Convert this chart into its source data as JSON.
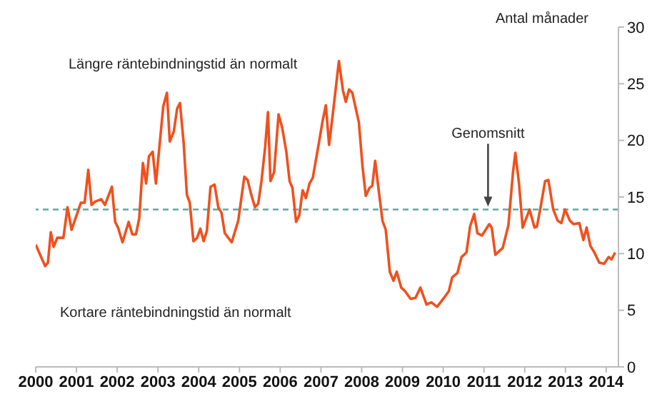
{
  "chart_data": {
    "type": "line",
    "ylabel": "Antal månader",
    "annotations": [
      "Längre räntebindningstid än normalt",
      "Kortare räntebindningstid än normalt",
      {
        "text": "Genomsnitt",
        "x": 2011.1,
        "y": 13.9
      }
    ],
    "series": [
      {
        "color": "#f0501e",
        "x": [
          2000.0,
          2000.23,
          2000.3,
          2000.37,
          2000.44,
          2000.53,
          2000.68,
          2000.78,
          2000.88,
          2001.11,
          2001.2,
          2001.29,
          2001.37,
          2001.46,
          2001.61,
          2001.7,
          2001.87,
          2001.95,
          2002.02,
          2002.13,
          2002.28,
          2002.37,
          2002.46,
          2002.54,
          2002.63,
          2002.71,
          2002.78,
          2002.87,
          2002.95,
          2003.13,
          2003.22,
          2003.29,
          2003.39,
          2003.47,
          2003.54,
          2003.63,
          2003.71,
          2003.78,
          2003.87,
          2003.96,
          2004.04,
          2004.12,
          2004.2,
          2004.29,
          2004.39,
          2004.48,
          2004.56,
          2004.64,
          2004.81,
          2004.97,
          2005.12,
          2005.2,
          2005.29,
          2005.38,
          2005.46,
          2005.54,
          2005.63,
          2005.7,
          2005.76,
          2005.85,
          2005.96,
          2006.05,
          2006.15,
          2006.23,
          2006.3,
          2006.39,
          2006.47,
          2006.55,
          2006.63,
          2006.72,
          2006.8,
          2006.95,
          2007.04,
          2007.12,
          2007.2,
          2007.29,
          2007.44,
          2007.54,
          2007.61,
          2007.69,
          2007.77,
          2007.93,
          2008.02,
          2008.1,
          2008.19,
          2008.26,
          2008.33,
          2008.43,
          2008.51,
          2008.59,
          2008.69,
          2008.78,
          2008.86,
          2008.97,
          2009.06,
          2009.2,
          2009.32,
          2009.44,
          2009.59,
          2009.71,
          2009.85,
          2010.02,
          2010.14,
          2010.22,
          2010.35,
          2010.45,
          2010.57,
          2010.66,
          2010.76,
          2010.84,
          2010.95,
          2011.13,
          2011.19,
          2011.28,
          2011.46,
          2011.6,
          2011.71,
          2011.77,
          2011.86,
          2011.95,
          2012.12,
          2012.24,
          2012.3,
          2012.38,
          2012.5,
          2012.58,
          2012.7,
          2012.81,
          2012.9,
          2012.99,
          2013.11,
          2013.2,
          2013.34,
          2013.44,
          2013.52,
          2013.61,
          2013.71,
          2013.83,
          2013.95,
          2014.06,
          2014.13,
          2014.22
        ],
        "values": [
          10.8,
          8.9,
          9.2,
          11.9,
          10.6,
          11.4,
          11.4,
          14.1,
          12.1,
          14.5,
          14.5,
          17.4,
          14.3,
          14.6,
          14.8,
          14.3,
          15.9,
          12.8,
          12.3,
          11.0,
          12.8,
          11.7,
          11.7,
          13.1,
          18.0,
          16.2,
          18.6,
          19.0,
          16.2,
          23.0,
          24.2,
          19.9,
          20.8,
          22.8,
          23.3,
          19.8,
          15.2,
          14.5,
          11.1,
          11.4,
          12.2,
          11.1,
          12.0,
          15.9,
          16.1,
          14.1,
          13.6,
          11.8,
          11.0,
          12.9,
          16.8,
          16.5,
          15.2,
          14.1,
          14.4,
          16.4,
          19.4,
          22.5,
          16.4,
          17.2,
          22.3,
          21.1,
          19.0,
          16.4,
          15.8,
          12.8,
          13.4,
          15.6,
          14.9,
          16.2,
          16.7,
          19.8,
          21.7,
          23.1,
          19.6,
          22.3,
          27.0,
          24.4,
          23.4,
          24.5,
          24.2,
          21.6,
          17.7,
          15.1,
          15.8,
          16.0,
          18.2,
          15.2,
          12.9,
          12.1,
          8.4,
          7.6,
          8.4,
          7.0,
          6.7,
          6.0,
          6.1,
          7.0,
          5.5,
          5.7,
          5.3,
          6.1,
          6.7,
          7.9,
          8.3,
          9.7,
          10.1,
          12.4,
          13.5,
          11.8,
          11.6,
          12.6,
          12.3,
          9.9,
          10.5,
          12.5,
          17.1,
          18.9,
          16.2,
          12.3,
          13.9,
          12.3,
          12.4,
          13.9,
          16.4,
          16.5,
          13.9,
          12.9,
          12.7,
          13.9,
          12.9,
          12.6,
          12.7,
          11.2,
          12.3,
          10.7,
          10.1,
          9.2,
          9.1,
          9.7,
          9.5,
          10.1
        ]
      }
    ],
    "xlim": [
      2000,
      2014.3
    ],
    "xticks": [
      2000,
      2001,
      2002,
      2003,
      2004,
      2005,
      2006,
      2007,
      2008,
      2009,
      2010,
      2011,
      2012,
      2013,
      2014
    ],
    "ylim": [
      0,
      30
    ],
    "yticks": [
      0,
      5,
      10,
      15,
      20,
      25,
      30
    ],
    "ref_lines": [
      {
        "axis": "y",
        "value": 13.9,
        "color": "#5fa8a0",
        "line_style": "dashed"
      }
    ],
    "grid": false,
    "legend": false,
    "marker": "none",
    "line_style": "solid"
  }
}
